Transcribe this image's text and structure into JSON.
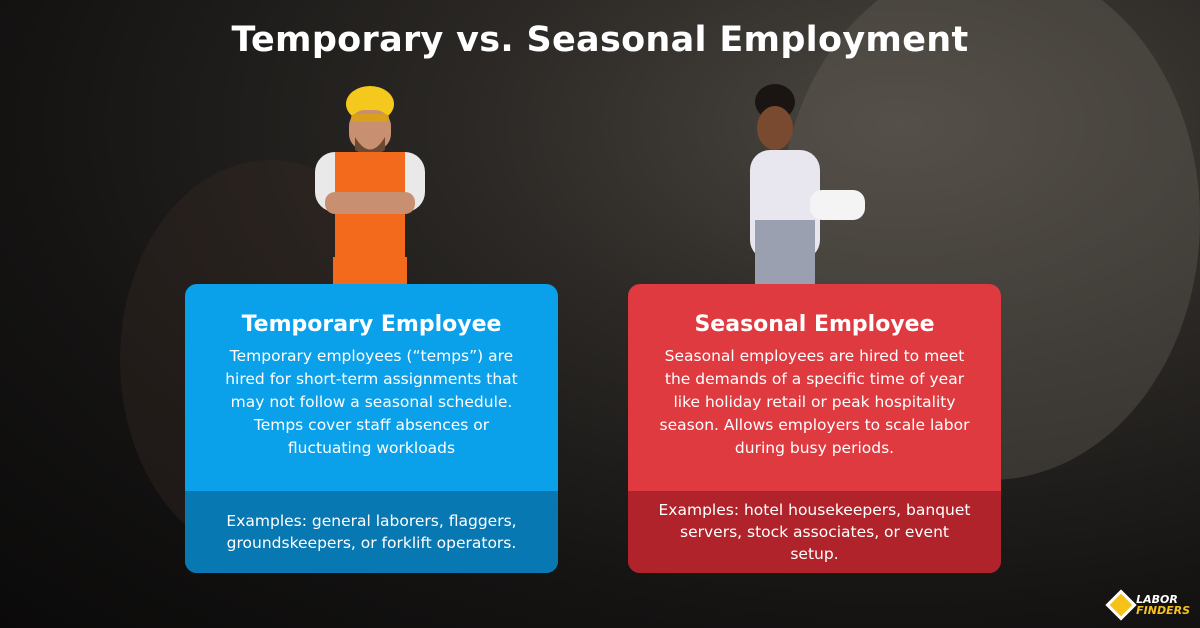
{
  "title": "Temporary vs. Seasonal Employment",
  "cards": [
    {
      "heading": "Temporary Employee",
      "description": "Temporary employees (“temps”) are hired for short-term assignments that may not follow a seasonal schedule. Temps cover staff absences or fluctuating workloads",
      "examples": "Examples: general laborers, flaggers, groundskeepers, or forklift operators.",
      "color": "#0aa0ea",
      "footer_color": "#0778b2"
    },
    {
      "heading": "Seasonal Employee",
      "description": "Seasonal employees are hired to meet the demands of a specific time of year like holiday retail or peak hospitality season. Allows employers to scale labor during busy periods.",
      "examples": "Examples: hotel housekeepers, banquet servers, stock associates, or event setup.",
      "color": "#de3a40",
      "footer_color": "#b0232a"
    }
  ],
  "logo": {
    "line1": "LABOR",
    "line2": "FINDERS"
  }
}
